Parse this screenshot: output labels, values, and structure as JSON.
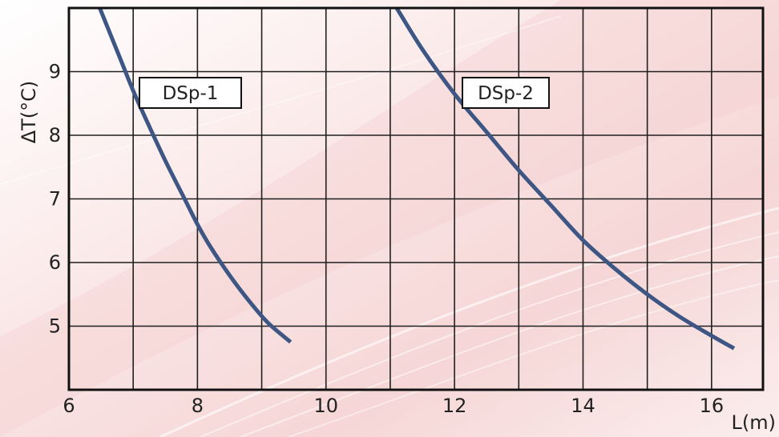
{
  "chart_data": {
    "type": "line",
    "title": "",
    "xlabel": "L(m)",
    "ylabel": "ΔT(°C)",
    "xlim": [
      6,
      16.8
    ],
    "ylim": [
      4,
      10
    ],
    "xticks": [
      "6",
      "8",
      "10",
      "12",
      "14",
      "16"
    ],
    "yticks": [
      "5",
      "6",
      "7",
      "8",
      "9"
    ],
    "grid": true,
    "series_labels_placement": "boxed labels on plot",
    "colors": {
      "line": "#3e5683",
      "grid": "#1f1f1f",
      "label_box": "#ffffff"
    },
    "series": [
      {
        "name": "DSp-1",
        "x": [
          6.48,
          6.8,
          7.0,
          7.2,
          7.5,
          7.8,
          8.0,
          8.2,
          8.5,
          8.8,
          9.1,
          9.45
        ],
        "y": [
          10.0,
          9.2,
          8.7,
          8.25,
          7.6,
          7.0,
          6.6,
          6.25,
          5.8,
          5.4,
          5.05,
          4.75
        ]
      },
      {
        "name": "DSp-2",
        "x": [
          11.1,
          11.5,
          12.0,
          12.5,
          13.0,
          13.5,
          14.0,
          14.5,
          15.0,
          15.5,
          16.0,
          16.35
        ],
        "y": [
          10.0,
          9.35,
          8.65,
          8.05,
          7.45,
          6.9,
          6.35,
          5.9,
          5.5,
          5.15,
          4.85,
          4.65
        ]
      }
    ]
  }
}
